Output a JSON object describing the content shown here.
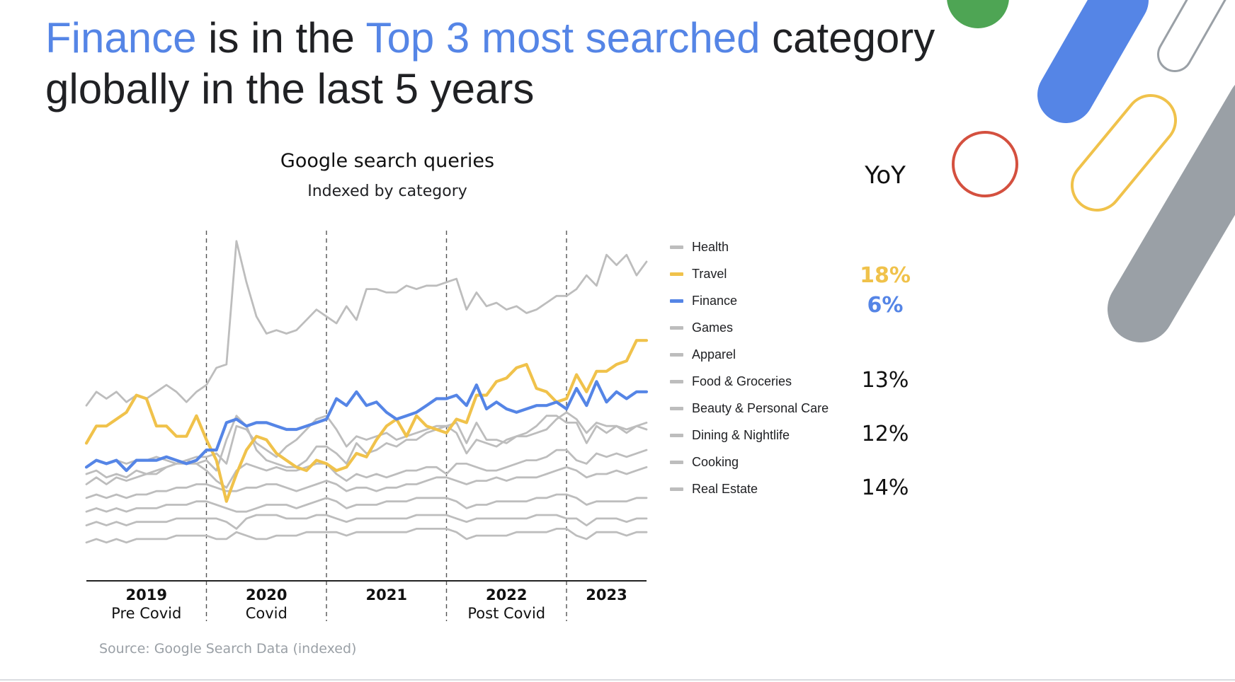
{
  "headline": {
    "part1": "Finance",
    "part2": " is in the ",
    "part3": "Top 3 most searched",
    "part4": " category globally in the last 5 years"
  },
  "colors": {
    "accent_blue": "#5585e6",
    "travel_yellow": "#f0c24b",
    "series_gray": "#bdbdbd",
    "headline_dark": "#202124"
  },
  "decorations": [
    "green-circle",
    "blue-pill",
    "gray-outline-pill",
    "red-ring",
    "yellow-outline-pill",
    "gray-pill"
  ],
  "chart_data": {
    "type": "line",
    "title": "Google search queries",
    "subtitle": "Indexed by category",
    "x_start": "2019-01",
    "x_end": "2023-08",
    "ylim": [
      0,
      100
    ],
    "grid": false,
    "legend_position": "right",
    "periods": [
      {
        "year": "2019",
        "label": "Pre Covid",
        "start": 0,
        "end": 12
      },
      {
        "year": "2020",
        "label": "Covid",
        "start": 12,
        "end": 24
      },
      {
        "year": "2021",
        "label": "",
        "start": 24,
        "end": 36
      },
      {
        "year": "2022",
        "label": "Post Covid",
        "start": 36,
        "end": 48
      },
      {
        "year": "2023",
        "label": "",
        "start": 48,
        "end": 56
      }
    ],
    "series": [
      {
        "name": "Health",
        "color": "#bdbdbd",
        "highlight": false,
        "values": [
          51,
          55,
          53,
          55,
          52,
          54,
          53,
          55,
          57,
          55,
          52,
          55,
          57,
          62,
          63,
          99,
          87,
          77,
          72,
          73,
          72,
          73,
          76,
          79,
          77,
          75,
          80,
          76,
          85,
          85,
          84,
          84,
          86,
          85,
          86,
          86,
          87,
          88,
          79,
          84,
          80,
          81,
          79,
          80,
          78,
          79,
          81,
          83,
          83,
          85,
          89,
          86,
          95,
          92,
          95,
          89,
          93
        ]
      },
      {
        "name": "Travel",
        "color": "#f0c24b",
        "highlight": true,
        "values": [
          40,
          45,
          45,
          47,
          49,
          54,
          53,
          45,
          45,
          42,
          42,
          48,
          41,
          35,
          23,
          31,
          38,
          42,
          41,
          37,
          35,
          33,
          32,
          35,
          34,
          32,
          33,
          37,
          36,
          41,
          45,
          47,
          42,
          48,
          45,
          44,
          43,
          47,
          46,
          54,
          54,
          58,
          59,
          62,
          63,
          56,
          55,
          52,
          53,
          60,
          55,
          61,
          61,
          63,
          64,
          70,
          70
        ]
      },
      {
        "name": "Finance",
        "color": "#5585e6",
        "highlight": true,
        "values": [
          33,
          35,
          34,
          35,
          32,
          35,
          35,
          35,
          36,
          35,
          34,
          35,
          38,
          38,
          46,
          47,
          45,
          46,
          46,
          45,
          44,
          44,
          45,
          46,
          47,
          53,
          51,
          55,
          51,
          52,
          49,
          47,
          48,
          49,
          51,
          53,
          53,
          54,
          51,
          57,
          50,
          52,
          50,
          49,
          50,
          51,
          51,
          52,
          50,
          56,
          51,
          58,
          52,
          55,
          53,
          55,
          55
        ]
      },
      {
        "name": "Games",
        "color": "#bdbdbd",
        "highlight": false,
        "values": [
          28,
          30,
          28,
          30,
          29,
          30,
          31,
          31,
          33,
          34,
          35,
          34,
          35,
          32,
          41,
          48,
          45,
          38,
          35,
          34,
          33,
          33,
          35,
          39,
          39,
          37,
          34,
          40,
          37,
          38,
          40,
          39,
          41,
          41,
          43,
          44,
          45,
          46,
          40,
          46,
          41,
          41,
          40,
          42,
          43,
          45,
          48,
          48,
          46,
          46,
          40,
          45,
          43,
          45,
          43,
          45,
          44
        ]
      },
      {
        "name": "Apparel",
        "color": "#bdbdbd",
        "highlight": false,
        "values": [
          31,
          32,
          30,
          31,
          30,
          32,
          31,
          32,
          33,
          34,
          34,
          34,
          32,
          29,
          27,
          32,
          34,
          33,
          32,
          33,
          32,
          32,
          33,
          34,
          34,
          31,
          29,
          31,
          30,
          31,
          30,
          31,
          32,
          32,
          33,
          33,
          31,
          34,
          34,
          33,
          32,
          32,
          33,
          34,
          35,
          35,
          36,
          38,
          38,
          35,
          34,
          37,
          36,
          37,
          36,
          37,
          38
        ]
      },
      {
        "name": "Food & Groceries",
        "color": "#bdbdbd",
        "highlight": false,
        "values": [
          33,
          35,
          34,
          35,
          34,
          35,
          35,
          36,
          35,
          34,
          35,
          36,
          36,
          37,
          34,
          45,
          44,
          40,
          38,
          36,
          39,
          41,
          44,
          47,
          48,
          44,
          39,
          42,
          41,
          42,
          43,
          41,
          42,
          43,
          44,
          45,
          45,
          43,
          37,
          41,
          40,
          39,
          41,
          42,
          42,
          43,
          44,
          47,
          49,
          47,
          43,
          46,
          45,
          45,
          44,
          45,
          46
        ]
      },
      {
        "name": "Beauty & Personal Care",
        "color": "#bdbdbd",
        "highlight": false,
        "values": [
          24,
          25,
          24,
          25,
          24,
          25,
          25,
          26,
          26,
          27,
          27,
          28,
          28,
          27,
          26,
          26,
          27,
          27,
          28,
          28,
          27,
          26,
          27,
          28,
          29,
          28,
          26,
          27,
          27,
          26,
          27,
          27,
          28,
          28,
          29,
          30,
          30,
          29,
          28,
          29,
          29,
          30,
          29,
          30,
          30,
          30,
          31,
          32,
          33,
          32,
          30,
          31,
          31,
          32,
          31,
          32,
          33
        ]
      },
      {
        "name": "Dining & Nightlife",
        "color": "#bdbdbd",
        "highlight": false,
        "values": [
          20,
          21,
          20,
          21,
          20,
          21,
          21,
          21,
          22,
          22,
          22,
          23,
          23,
          22,
          21,
          20,
          20,
          21,
          22,
          22,
          22,
          21,
          22,
          23,
          24,
          23,
          21,
          22,
          22,
          22,
          23,
          23,
          23,
          24,
          24,
          24,
          24,
          23,
          21,
          22,
          22,
          23,
          23,
          23,
          23,
          24,
          24,
          25,
          25,
          24,
          22,
          23,
          23,
          23,
          23,
          24,
          24
        ]
      },
      {
        "name": "Cooking",
        "color": "#bdbdbd",
        "highlight": false,
        "values": [
          16,
          17,
          16,
          17,
          16,
          17,
          17,
          17,
          17,
          18,
          18,
          18,
          18,
          18,
          17,
          15,
          18,
          19,
          19,
          19,
          18,
          18,
          18,
          19,
          19,
          18,
          17,
          18,
          18,
          18,
          18,
          18,
          18,
          19,
          19,
          19,
          19,
          18,
          17,
          18,
          18,
          18,
          18,
          18,
          18,
          19,
          19,
          19,
          18,
          18,
          16,
          18,
          18,
          18,
          17,
          18,
          18
        ]
      },
      {
        "name": "Real Estate",
        "color": "#bdbdbd",
        "highlight": false,
        "values": [
          11,
          12,
          11,
          12,
          11,
          12,
          12,
          12,
          12,
          13,
          13,
          13,
          13,
          12,
          12,
          14,
          13,
          12,
          12,
          13,
          13,
          13,
          14,
          14,
          14,
          14,
          13,
          14,
          14,
          14,
          14,
          14,
          14,
          15,
          15,
          15,
          15,
          14,
          12,
          13,
          13,
          13,
          13,
          14,
          14,
          14,
          14,
          15,
          15,
          13,
          12,
          14,
          14,
          14,
          13,
          14,
          14
        ]
      }
    ],
    "yoy": [
      {
        "series": "Travel",
        "value": "18%",
        "bold": true,
        "color": "#f0c24b"
      },
      {
        "series": "Finance",
        "value": "6%",
        "bold": true,
        "color": "#5585e6"
      },
      {
        "series": "Food & Groceries",
        "value": "13%",
        "bold": false,
        "color": "#111111"
      },
      {
        "series": "Dining & Nightlife",
        "value": "12%",
        "bold": false,
        "color": "#111111"
      },
      {
        "series": "Real Estate",
        "value": "14%",
        "bold": false,
        "color": "#111111"
      }
    ],
    "yoy_label": "YoY",
    "source": "Source: Google Search Data (indexed)"
  }
}
